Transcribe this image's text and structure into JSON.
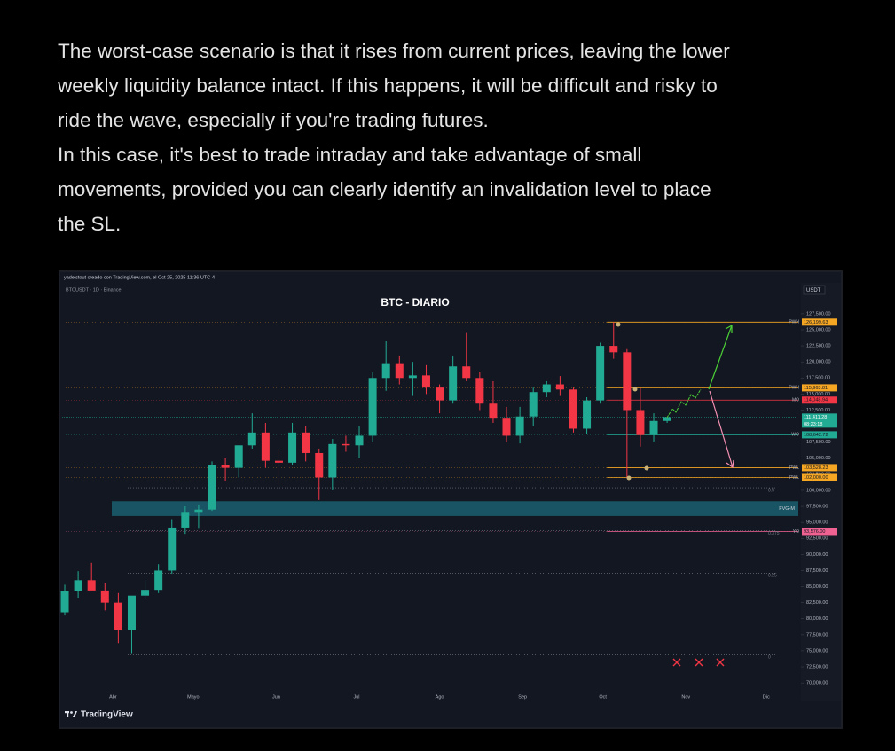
{
  "post": {
    "paragraphs": [
      [
        "The worst-case scenario is that it rises from current prices, leaving the lower",
        "weekly liquidity balance intact. If this happens, it will be difficult and risky to",
        "ride the wave, especially if you're trading futures."
      ],
      [
        "In this case, it's best to trade intraday and take advantage of small",
        "movements, provided you can clearly identify an invalidation level to place",
        "the SL."
      ]
    ]
  },
  "chart_data": {
    "type": "candlestick",
    "source": "yadelstout creado con TradingView.com, el Oct 25, 2025 11:36 UTC-4",
    "symbol": "BTCUSDT · 1D · Binance",
    "currency": "USDT",
    "title": "BTC - DIARIO",
    "brand": "TradingView",
    "colors": {
      "up": "#22ab94",
      "down": "#f23645"
    },
    "xlim": [
      -0.2,
      54.8
    ],
    "ylim": [
      68500,
      130800
    ],
    "xticks": [
      {
        "value": 3.6,
        "label": "Abr"
      },
      {
        "value": 9.6,
        "label": "Mayo"
      },
      {
        "value": 15.8,
        "label": "Jun"
      },
      {
        "value": 21.8,
        "label": "Jul"
      },
      {
        "value": 28,
        "label": "Ago"
      },
      {
        "value": 34.2,
        "label": "Sep"
      },
      {
        "value": 40.2,
        "label": "Oct"
      },
      {
        "value": 46.4,
        "label": "Nov"
      },
      {
        "value": 52.4,
        "label": "Dic"
      }
    ],
    "yticks": [
      {
        "value": 127500,
        "label": "127,500.00"
      },
      {
        "value": 125000,
        "label": "125,000.00"
      },
      {
        "value": 122500,
        "label": "122,500.00"
      },
      {
        "value": 120000,
        "label": "120,000.00"
      },
      {
        "value": 117500,
        "label": "117,500.00"
      },
      {
        "value": 115000,
        "label": "115,000.00"
      },
      {
        "value": 112500,
        "label": "112,500.00"
      },
      {
        "value": 110000,
        "label": "110,000.00"
      },
      {
        "value": 107500,
        "label": "107,500.00"
      },
      {
        "value": 105000,
        "label": "105,000.00"
      },
      {
        "value": 102500,
        "label": "102,500.00"
      },
      {
        "value": 100000,
        "label": "100,000.00"
      },
      {
        "value": 97500,
        "label": "97,500.00"
      },
      {
        "value": 95000,
        "label": "95,000.00"
      },
      {
        "value": 92500,
        "label": "92,500.00"
      },
      {
        "value": 90000,
        "label": "90,000.00"
      },
      {
        "value": 87500,
        "label": "87,500.00"
      },
      {
        "value": 85000,
        "label": "85,000.00"
      },
      {
        "value": 82500,
        "label": "82,500.00"
      },
      {
        "value": 80000,
        "label": "80,000.00"
      },
      {
        "value": 77500,
        "label": "77,500.00"
      },
      {
        "value": 75000,
        "label": "75,000.00"
      },
      {
        "value": 72500,
        "label": "72,500.00"
      },
      {
        "value": 70000,
        "label": "70,000.00"
      }
    ],
    "open": [
      81000,
      84300,
      86000,
      84400,
      82500,
      78300,
      83600,
      84500,
      87500,
      94200,
      96500,
      97000,
      104000,
      103500,
      107000,
      109000,
      104600,
      104300,
      109000,
      105800,
      102000,
      107200,
      107000,
      108500,
      117500,
      119800,
      117500,
      117900,
      116000,
      114000,
      119300,
      117500,
      113500,
      111300,
      108500,
      111500,
      115300,
      116500,
      115700,
      109600,
      114000,
      122500,
      121500,
      112500,
      108600,
      110800
    ],
    "high": [
      85300,
      87400,
      88700,
      85500,
      84000,
      83500,
      86000,
      88500,
      95500,
      97500,
      97800,
      104500,
      105000,
      107000,
      112000,
      110500,
      106500,
      110500,
      110000,
      106500,
      108000,
      108500,
      110000,
      118500,
      123200,
      121000,
      120000,
      119500,
      116500,
      121000,
      124500,
      118500,
      117000,
      113000,
      113000,
      116000,
      117000,
      117800,
      116000,
      114500,
      123000,
      126200,
      122000,
      115900,
      112000,
      111400
    ],
    "low": [
      80500,
      83200,
      84500,
      81300,
      76200,
      74500,
      83000,
      84000,
      87000,
      93200,
      94000,
      96800,
      101500,
      102000,
      106500,
      103500,
      101000,
      104000,
      104500,
      98500,
      100000,
      106000,
      105000,
      107500,
      115500,
      116500,
      114700,
      115000,
      112000,
      113500,
      117000,
      112500,
      110500,
      107500,
      107300,
      110000,
      114500,
      114700,
      109000,
      108800,
      113500,
      120500,
      102000,
      106800,
      107600,
      110500
    ],
    "close": [
      84300,
      86000,
      84400,
      82500,
      78300,
      83600,
      84500,
      87500,
      94200,
      96500,
      97000,
      104000,
      103500,
      107000,
      109000,
      104600,
      104300,
      109000,
      105800,
      102000,
      107200,
      107000,
      108500,
      117500,
      119800,
      117500,
      117900,
      116000,
      114000,
      119300,
      117500,
      113500,
      111300,
      108500,
      111500,
      115300,
      116500,
      115700,
      109600,
      114000,
      122500,
      121500,
      112500,
      108600,
      110800,
      111400
    ],
    "levels": [
      {
        "name": "PWH",
        "value": 126199.63,
        "value_label": "126,199.63",
        "color": "#f5a623"
      },
      {
        "name": "PWH",
        "value": 115963.81,
        "value_label": "115,963.81",
        "color": "#f5a623"
      },
      {
        "name": "MO",
        "value": 114048.94,
        "value_label": "114,048.94",
        "color": "#f23645"
      },
      {
        "name": "WO",
        "value": 108642.72,
        "value_label": "108,642.72",
        "color": "#22ab94"
      },
      {
        "name": "PWL",
        "value": 103528.23,
        "value_label": "103,528.23",
        "color": "#f5a623"
      },
      {
        "name": "PWL",
        "value": 102000,
        "value_label": "102,000.00",
        "color": "#f5a623"
      },
      {
        "name": "YO",
        "value": 93576,
        "value_label": "93,576.00",
        "color": "#f06292"
      }
    ],
    "price": {
      "value": 111411.28,
      "label": "111,411.28",
      "countdown": "08:23:18",
      "color": "#22ab94"
    },
    "fib": [
      {
        "level": 0.5,
        "value": 100400
      },
      {
        "level": 0.375,
        "value": 93700
      },
      {
        "level": 0.25,
        "value": 87100
      },
      {
        "level": 0,
        "value": 74400
      }
    ],
    "fvg": {
      "name": "FVG-M",
      "range": [
        96000,
        98300
      ],
      "color": "#1a5f6e"
    }
  }
}
